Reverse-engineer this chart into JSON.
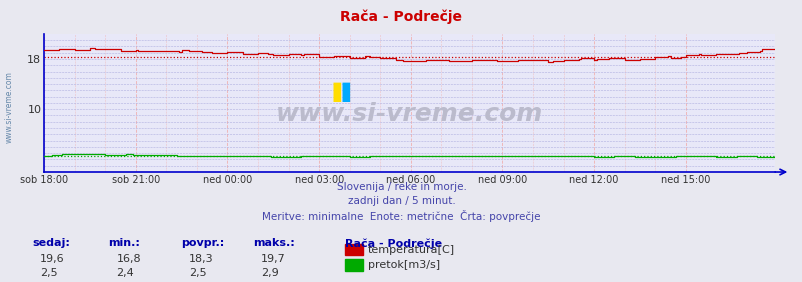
{
  "title": "Rača - Podrečje",
  "title_color": "#cc0000",
  "bg_color": "#e8e8f0",
  "plot_bg_color": "#e8e8f8",
  "grid_color_h": "#b0b0e0",
  "grid_color_v": "#f0b0b0",
  "xlim": [
    0,
    287
  ],
  "ylim": [
    0,
    22
  ],
  "yticks": [
    10,
    18
  ],
  "xtick_labels": [
    "sob 18:00",
    "sob 21:00",
    "ned 00:00",
    "ned 03:00",
    "ned 06:00",
    "ned 09:00",
    "ned 12:00",
    "ned 15:00"
  ],
  "xtick_positions": [
    0,
    36,
    72,
    108,
    144,
    180,
    216,
    252
  ],
  "temp_avg": 18.3,
  "temp_min": 16.8,
  "temp_max": 19.7,
  "temp_current": 19.6,
  "flow_avg": 2.5,
  "flow_min": 2.4,
  "flow_max": 2.9,
  "flow_current": 2.5,
  "temp_color": "#cc0000",
  "flow_color": "#00aa00",
  "axis_color": "#0000cc",
  "watermark": "www.si-vreme.com",
  "watermark_color": "#bbbbcc",
  "subtitle1": "Slovenija / reke in morje.",
  "subtitle2": "zadnji dan / 5 minut.",
  "subtitle3": "Meritve: minimalne  Enote: metrične  Črta: povprečje",
  "subtitle_color": "#4444aa",
  "legend_title": "Rača - Podrečje",
  "legend_items": [
    "temperatura[C]",
    "pretok[m3/s]"
  ],
  "legend_colors": [
    "#cc0000",
    "#00aa00"
  ],
  "stats_headers": [
    "sedaj:",
    "min.:",
    "povpr.:",
    "maks.:"
  ],
  "stats_temp": [
    "19,6",
    "16,8",
    "18,3",
    "19,7"
  ],
  "stats_flow": [
    "2,5",
    "2,4",
    "2,5",
    "2,9"
  ]
}
